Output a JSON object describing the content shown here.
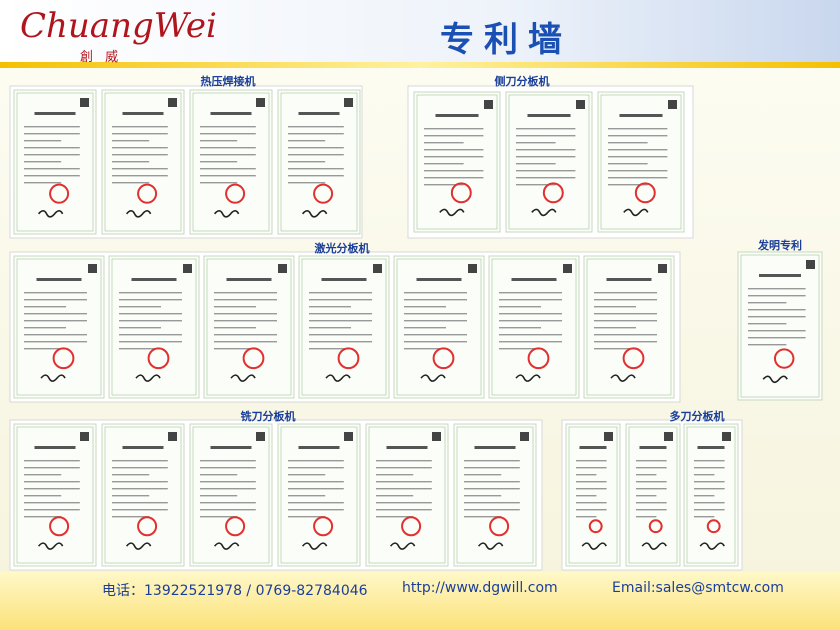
{
  "header": {
    "logo": "ChuangWei",
    "logo_cn": "創 威",
    "title": "专利墙"
  },
  "sections": [
    "热压焊接机",
    "侧刀分板机",
    "激光分板机",
    "发明专利",
    "铣刀分板机",
    "多刀分板机"
  ],
  "footer": {
    "phone": "电话：13922521978 / 0769-82784046",
    "website": "http://www.dgwill.com",
    "email": "Email:sales@smtcw.com"
  }
}
